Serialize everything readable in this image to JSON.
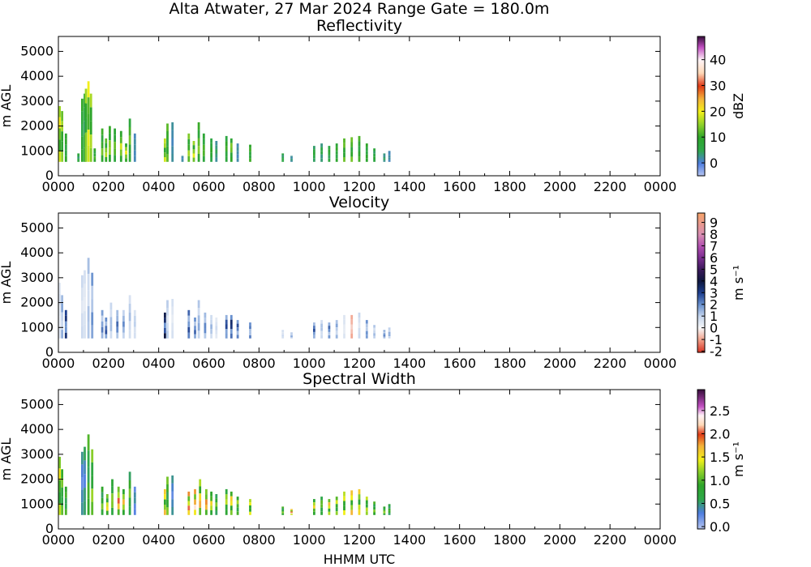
{
  "figure": {
    "title": "Alta Atwater, 27 Mar 2024 Range Gate = 180.0m",
    "xlabel": "HHMM UTC"
  },
  "chart_data": [
    {
      "type": "heatmap",
      "title": "Reflectivity",
      "ylabel": "m AGL",
      "x_ticks": [
        "0000",
        "0200",
        "0400",
        "0600",
        "0800",
        "1000",
        "1200",
        "1400",
        "1600",
        "1800",
        "2000",
        "2200",
        "0000"
      ],
      "xlim_hours": [
        0,
        24
      ],
      "y_ticks": [
        0,
        1000,
        2000,
        3000,
        4000,
        5000
      ],
      "ylim": [
        0,
        5600
      ],
      "colorbar": {
        "label": "dBZ",
        "ticks": [
          "0",
          "10",
          "20",
          "30",
          "40"
        ],
        "tick_values": [
          0,
          10,
          20,
          30,
          40
        ],
        "range": [
          -5,
          49
        ],
        "stops": [
          [
            -5,
            "#b9c7f1"
          ],
          [
            0,
            "#4e7de0"
          ],
          [
            5,
            "#2fa84a"
          ],
          [
            10,
            "#2ea52a"
          ],
          [
            15,
            "#8fd12a"
          ],
          [
            20,
            "#f3f019"
          ],
          [
            25,
            "#f3b13a"
          ],
          [
            30,
            "#e03a17"
          ],
          [
            35,
            "#ffd9b8"
          ],
          [
            40,
            "#fff4f7"
          ],
          [
            45,
            "#c24fc2"
          ],
          [
            49,
            "#3b1040"
          ]
        ]
      },
      "columns": [
        {
          "t": 0.05,
          "top": 2800,
          "value": 18
        },
        {
          "t": 0.15,
          "top": 2600,
          "value": 14
        },
        {
          "t": 0.3,
          "top": 1700,
          "value": 9
        },
        {
          "t": 0.8,
          "top": 900,
          "value": 6
        },
        {
          "t": 0.95,
          "top": 3100,
          "value": 9
        },
        {
          "t": 1.05,
          "top": 3300,
          "value": 7
        },
        {
          "t": 1.1,
          "top": 3500,
          "value": 14
        },
        {
          "t": 1.2,
          "top": 3800,
          "value": 18
        },
        {
          "t": 1.3,
          "top": 3300,
          "value": 15
        },
        {
          "t": 1.45,
          "top": 1100,
          "value": 10
        },
        {
          "t": 1.75,
          "top": 1900,
          "value": 12
        },
        {
          "t": 1.9,
          "top": 1500,
          "value": 15
        },
        {
          "t": 2.05,
          "top": 2000,
          "value": 14
        },
        {
          "t": 2.25,
          "top": 1900,
          "value": 12
        },
        {
          "t": 2.5,
          "top": 1800,
          "value": 16
        },
        {
          "t": 2.7,
          "top": 1300,
          "value": 18
        },
        {
          "t": 2.85,
          "top": 2300,
          "value": 12
        },
        {
          "t": 3.05,
          "top": 1700,
          "value": 2
        },
        {
          "t": 4.25,
          "top": 1500,
          "value": 16
        },
        {
          "t": 4.35,
          "top": 2100,
          "value": 11
        },
        {
          "t": 4.55,
          "top": 2150,
          "value": 2
        },
        {
          "t": 4.95,
          "top": 800,
          "value": 2
        },
        {
          "t": 5.2,
          "top": 1700,
          "value": 14
        },
        {
          "t": 5.4,
          "top": 1400,
          "value": 17
        },
        {
          "t": 5.6,
          "top": 2150,
          "value": 13
        },
        {
          "t": 5.8,
          "top": 1700,
          "value": 11
        },
        {
          "t": 6.1,
          "top": 1500,
          "value": 9
        },
        {
          "t": 6.3,
          "top": 1400,
          "value": 4
        },
        {
          "t": 6.7,
          "top": 1600,
          "value": 10
        },
        {
          "t": 6.9,
          "top": 1500,
          "value": 13
        },
        {
          "t": 7.15,
          "top": 1300,
          "value": 2
        },
        {
          "t": 7.65,
          "top": 1250,
          "value": 10
        },
        {
          "t": 8.95,
          "top": 900,
          "value": 6
        },
        {
          "t": 9.3,
          "top": 800,
          "value": 3
        },
        {
          "t": 10.2,
          "top": 1200,
          "value": 7
        },
        {
          "t": 10.5,
          "top": 1300,
          "value": 5
        },
        {
          "t": 10.8,
          "top": 1200,
          "value": 8
        },
        {
          "t": 11.1,
          "top": 1300,
          "value": 9
        },
        {
          "t": 11.4,
          "top": 1500,
          "value": 12
        },
        {
          "t": 11.7,
          "top": 1550,
          "value": 12
        },
        {
          "t": 12.0,
          "top": 1600,
          "value": 10
        },
        {
          "t": 12.3,
          "top": 1300,
          "value": 9
        },
        {
          "t": 12.6,
          "top": 1100,
          "value": 7
        },
        {
          "t": 13.0,
          "top": 900,
          "value": 4
        },
        {
          "t": 13.2,
          "top": 1000,
          "value": 2
        }
      ]
    },
    {
      "type": "heatmap",
      "title": "Velocity",
      "ylabel": "m AGL",
      "x_ticks": [
        "0000",
        "0200",
        "0400",
        "0600",
        "0800",
        "1000",
        "1200",
        "1400",
        "1600",
        "1800",
        "2000",
        "2200",
        "0000"
      ],
      "xlim_hours": [
        0,
        24
      ],
      "y_ticks": [
        0,
        1000,
        2000,
        3000,
        4000,
        5000
      ],
      "ylim": [
        0,
        5600
      ],
      "colorbar": {
        "label": "m s⁻¹",
        "ticks": [
          "-2",
          "-1",
          "0",
          "1",
          "2",
          "3",
          "4",
          "5",
          "6",
          "7",
          "8",
          "9"
        ],
        "tick_values": [
          -2,
          -1,
          0,
          1,
          2,
          3,
          4,
          5,
          6,
          7,
          8,
          9
        ],
        "range": [
          -2.1,
          9.8
        ],
        "stops": [
          [
            -2.1,
            "#d62f1f"
          ],
          [
            -1,
            "#f2a08a"
          ],
          [
            0,
            "#f7f7f7"
          ],
          [
            1,
            "#c6d6ee"
          ],
          [
            2,
            "#6a92cf"
          ],
          [
            3,
            "#1e3f8f"
          ],
          [
            4,
            "#0f1840"
          ],
          [
            5,
            "#3a1a5a"
          ],
          [
            6,
            "#7a2d8f"
          ],
          [
            7,
            "#b14fb0"
          ],
          [
            8,
            "#d98fb3"
          ],
          [
            9.8,
            "#f6a36a"
          ]
        ]
      },
      "columns": [
        {
          "t": 0.05,
          "top": 2800,
          "value": 0.5
        },
        {
          "t": 0.15,
          "top": 2300,
          "value": 1.5
        },
        {
          "t": 0.3,
          "top": 1700,
          "value": 3
        },
        {
          "t": 0.95,
          "top": 3100,
          "value": 0.8
        },
        {
          "t": 1.05,
          "top": 3300,
          "value": 0.6
        },
        {
          "t": 1.2,
          "top": 3800,
          "value": 1.2
        },
        {
          "t": 1.35,
          "top": 3200,
          "value": 1.8
        },
        {
          "t": 1.75,
          "top": 1700,
          "value": 2
        },
        {
          "t": 1.9,
          "top": 1400,
          "value": 2.5
        },
        {
          "t": 2.1,
          "top": 2000,
          "value": 1.3
        },
        {
          "t": 2.35,
          "top": 1700,
          "value": 2.2
        },
        {
          "t": 2.6,
          "top": 1700,
          "value": 1.8
        },
        {
          "t": 2.85,
          "top": 2300,
          "value": 1.2
        },
        {
          "t": 3.05,
          "top": 1700,
          "value": 1
        },
        {
          "t": 4.25,
          "top": 1600,
          "value": 3.5
        },
        {
          "t": 4.35,
          "top": 2100,
          "value": 1
        },
        {
          "t": 4.55,
          "top": 2150,
          "value": 0.6
        },
        {
          "t": 5.2,
          "top": 1700,
          "value": 2.5
        },
        {
          "t": 5.45,
          "top": 1400,
          "value": 2.2
        },
        {
          "t": 5.6,
          "top": 2100,
          "value": 1.5
        },
        {
          "t": 5.85,
          "top": 1600,
          "value": 2
        },
        {
          "t": 6.1,
          "top": 1500,
          "value": 1.3
        },
        {
          "t": 6.3,
          "top": 1400,
          "value": 0.7
        },
        {
          "t": 6.7,
          "top": 1500,
          "value": 2.7
        },
        {
          "t": 6.9,
          "top": 1500,
          "value": 3.2
        },
        {
          "t": 7.15,
          "top": 1300,
          "value": 2.5
        },
        {
          "t": 7.65,
          "top": 1200,
          "value": 2
        },
        {
          "t": 8.95,
          "top": 900,
          "value": 0.8
        },
        {
          "t": 9.3,
          "top": 800,
          "value": 1.5
        },
        {
          "t": 10.2,
          "top": 1200,
          "value": 2.5
        },
        {
          "t": 10.5,
          "top": 1300,
          "value": 1.2
        },
        {
          "t": 10.8,
          "top": 1200,
          "value": 2.2
        },
        {
          "t": 11.1,
          "top": 1300,
          "value": 1.5
        },
        {
          "t": 11.4,
          "top": 1500,
          "value": 0.5
        },
        {
          "t": 11.7,
          "top": 1500,
          "value": -0.8
        },
        {
          "t": 12.0,
          "top": 1600,
          "value": 0.8
        },
        {
          "t": 12.3,
          "top": 1300,
          "value": 1.8
        },
        {
          "t": 12.6,
          "top": 1100,
          "value": 1.2
        },
        {
          "t": 13.0,
          "top": 900,
          "value": 2
        },
        {
          "t": 13.2,
          "top": 1000,
          "value": 1.5
        }
      ]
    },
    {
      "type": "heatmap",
      "title": "Spectral Width",
      "ylabel": "m AGL",
      "x_ticks": [
        "0000",
        "0200",
        "0400",
        "0600",
        "0800",
        "1000",
        "1200",
        "1400",
        "1600",
        "1800",
        "2000",
        "2200",
        "0000"
      ],
      "xlim_hours": [
        0,
        24
      ],
      "y_ticks": [
        0,
        1000,
        2000,
        3000,
        4000,
        5000
      ],
      "ylim": [
        0,
        5600
      ],
      "colorbar": {
        "label": "m s⁻¹",
        "ticks": [
          "0.0",
          "0.5",
          "1.0",
          "1.5",
          "2.0",
          "2.5"
        ],
        "tick_values": [
          0,
          0.5,
          1.0,
          1.5,
          2.0,
          2.5
        ],
        "range": [
          -0.05,
          2.95
        ],
        "stops": [
          [
            -0.05,
            "#b9c7f1"
          ],
          [
            0.3,
            "#4e7de0"
          ],
          [
            0.6,
            "#2fa84a"
          ],
          [
            0.9,
            "#2ea52a"
          ],
          [
            1.2,
            "#8fd12a"
          ],
          [
            1.45,
            "#f3f019"
          ],
          [
            1.75,
            "#f3b13a"
          ],
          [
            2.0,
            "#e03a17"
          ],
          [
            2.2,
            "#ffd9b8"
          ],
          [
            2.4,
            "#fff4f7"
          ],
          [
            2.6,
            "#c24fc2"
          ],
          [
            2.95,
            "#3b1040"
          ]
        ]
      },
      "columns": [
        {
          "t": 0.05,
          "top": 2900,
          "value": 1.3
        },
        {
          "t": 0.15,
          "top": 2400,
          "value": 1.0
        },
        {
          "t": 0.3,
          "top": 1700,
          "value": 0.9
        },
        {
          "t": 0.95,
          "top": 3100,
          "value": 0.4
        },
        {
          "t": 1.05,
          "top": 3300,
          "value": 0.5
        },
        {
          "t": 1.2,
          "top": 3800,
          "value": 0.9
        },
        {
          "t": 1.35,
          "top": 3200,
          "value": 1.1
        },
        {
          "t": 1.75,
          "top": 1700,
          "value": 1.0
        },
        {
          "t": 1.95,
          "top": 1400,
          "value": 1.4
        },
        {
          "t": 2.15,
          "top": 2000,
          "value": 1.1
        },
        {
          "t": 2.4,
          "top": 1700,
          "value": 1.8
        },
        {
          "t": 2.6,
          "top": 1600,
          "value": 1.5
        },
        {
          "t": 2.85,
          "top": 2300,
          "value": 1.0
        },
        {
          "t": 3.05,
          "top": 1700,
          "value": 0.4
        },
        {
          "t": 4.25,
          "top": 1600,
          "value": 1.5
        },
        {
          "t": 4.35,
          "top": 2100,
          "value": 1.0
        },
        {
          "t": 4.55,
          "top": 2150,
          "value": 0.4
        },
        {
          "t": 5.2,
          "top": 1500,
          "value": 1.8
        },
        {
          "t": 5.45,
          "top": 1600,
          "value": 2.0
        },
        {
          "t": 5.65,
          "top": 2000,
          "value": 1.6
        },
        {
          "t": 5.9,
          "top": 1600,
          "value": 1.7
        },
        {
          "t": 6.1,
          "top": 1500,
          "value": 1.4
        },
        {
          "t": 6.3,
          "top": 1400,
          "value": 1.0
        },
        {
          "t": 6.7,
          "top": 1600,
          "value": 1.2
        },
        {
          "t": 6.9,
          "top": 1500,
          "value": 1.5
        },
        {
          "t": 7.15,
          "top": 1300,
          "value": 1.1
        },
        {
          "t": 7.65,
          "top": 1200,
          "value": 1.3
        },
        {
          "t": 8.95,
          "top": 900,
          "value": 1.0
        },
        {
          "t": 9.3,
          "top": 800,
          "value": 2.0
        },
        {
          "t": 10.2,
          "top": 1200,
          "value": 1.4
        },
        {
          "t": 10.5,
          "top": 1300,
          "value": 1.0
        },
        {
          "t": 10.8,
          "top": 1200,
          "value": 1.5
        },
        {
          "t": 11.1,
          "top": 1300,
          "value": 1.2
        },
        {
          "t": 11.4,
          "top": 1500,
          "value": 1.3
        },
        {
          "t": 11.7,
          "top": 1550,
          "value": 1.5
        },
        {
          "t": 12.0,
          "top": 1600,
          "value": 1.4
        },
        {
          "t": 12.3,
          "top": 1300,
          "value": 1.2
        },
        {
          "t": 12.6,
          "top": 1100,
          "value": 1.0
        },
        {
          "t": 13.0,
          "top": 900,
          "value": 1.1
        },
        {
          "t": 13.2,
          "top": 1000,
          "value": 0.9
        }
      ]
    }
  ]
}
